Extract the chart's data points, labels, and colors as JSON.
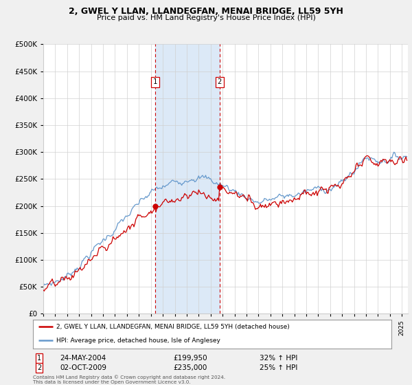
{
  "title": "2, GWEL Y LLAN, LLANDEGFAN, MENAI BRIDGE, LL59 5YH",
  "subtitle": "Price paid vs. HM Land Registry's House Price Index (HPI)",
  "background_color": "#f0f0f0",
  "plot_bg_color": "#ffffff",
  "red_line_color": "#cc0000",
  "blue_line_color": "#6699cc",
  "highlight_bg_color": "#dce9f7",
  "vline_color": "#cc0000",
  "sale1_year": 2004.37,
  "sale1_price": 199950,
  "sale2_year": 2009.75,
  "sale2_price": 235000,
  "annotation1": {
    "label": "1",
    "date": "24-MAY-2004",
    "price": "£199,950",
    "pct": "32% ↑ HPI"
  },
  "annotation2": {
    "label": "2",
    "date": "02-OCT-2009",
    "price": "£235,000",
    "pct": "25% ↑ HPI"
  },
  "legend_line1": "2, GWEL Y LLAN, LLANDEGFAN, MENAI BRIDGE, LL59 5YH (detached house)",
  "legend_line2": "HPI: Average price, detached house, Isle of Anglesey",
  "footer": "Contains HM Land Registry data © Crown copyright and database right 2024.\nThis data is licensed under the Open Government Licence v3.0.",
  "ylim": [
    0,
    500000
  ],
  "yticks": [
    0,
    50000,
    100000,
    150000,
    200000,
    250000,
    300000,
    350000,
    400000,
    450000,
    500000
  ],
  "xmin": 1995.0,
  "xmax": 2025.5
}
